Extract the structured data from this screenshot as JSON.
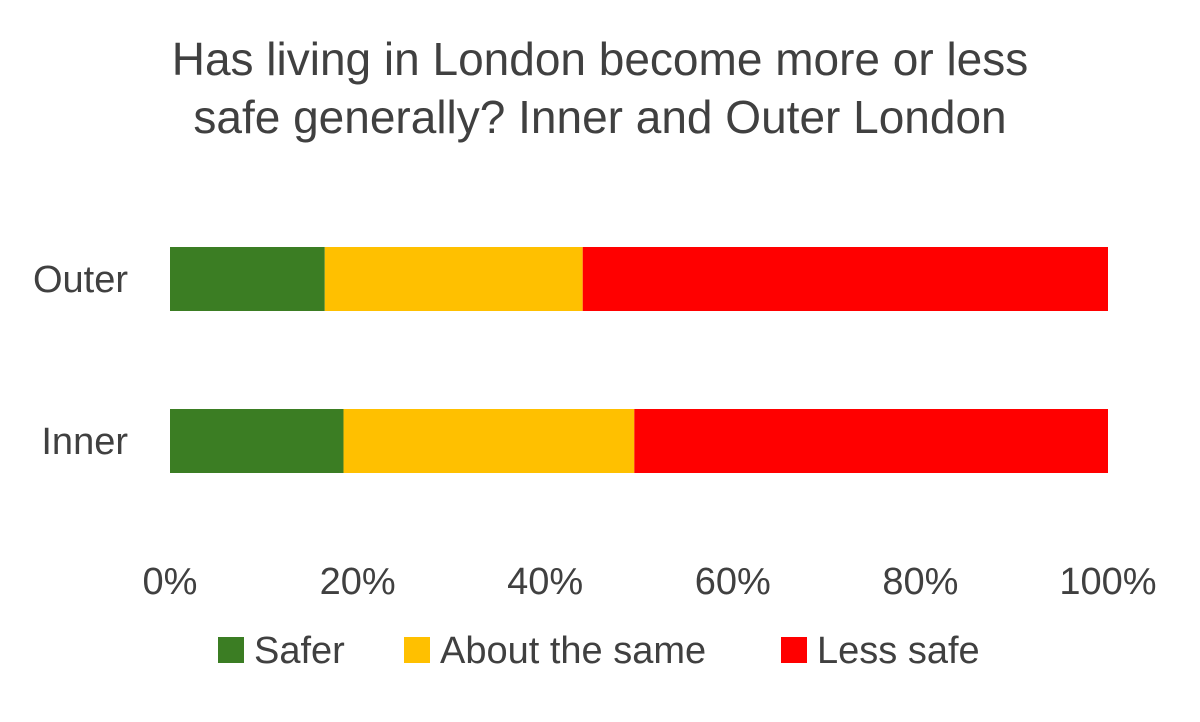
{
  "chart_data": {
    "type": "bar",
    "orientation": "horizontal",
    "stacked": "percent",
    "title": "Has living in London become more or less safe generally?  Inner and Outer London",
    "categories": [
      "Outer",
      "Inner"
    ],
    "series": [
      {
        "name": "Safer",
        "values": [
          16.5,
          18.5
        ],
        "color": "#3B7D23"
      },
      {
        "name": "About the same",
        "values": [
          27.5,
          31.0
        ],
        "color": "#FFC000"
      },
      {
        "name": "Less safe",
        "values": [
          56.0,
          50.5
        ],
        "color": "#FF0000"
      }
    ],
    "x_ticks": [
      "0%",
      "20%",
      "40%",
      "60%",
      "80%",
      "100%"
    ],
    "xlim": [
      0,
      100
    ],
    "grid": false,
    "legend_position": "bottom"
  }
}
